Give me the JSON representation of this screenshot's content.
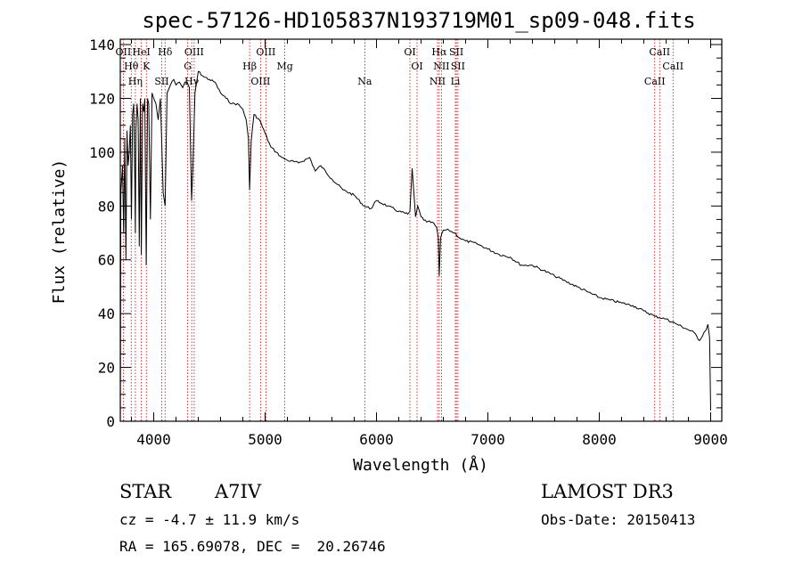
{
  "chart_data": {
    "type": "line",
    "title": "spec-57126-HD105837N193719M01_sp09-048.fits",
    "xlabel": "Wavelength (Å)",
    "ylabel": "Flux (relative)",
    "xlim": [
      3700,
      9100
    ],
    "ylim": [
      0,
      142
    ],
    "xticks": [
      4000,
      5000,
      6000,
      7000,
      8000,
      9000
    ],
    "yticks": [
      0,
      20,
      40,
      60,
      80,
      100,
      120,
      140
    ],
    "grid": false,
    "series": [
      {
        "name": "flux",
        "x": [
          3700,
          3705,
          3720,
          3730,
          3740,
          3750,
          3760,
          3770,
          3780,
          3790,
          3800,
          3810,
          3820,
          3830,
          3835,
          3840,
          3850,
          3860,
          3870,
          3880,
          3889,
          3900,
          3910,
          3920,
          3933,
          3945,
          3955,
          3970,
          3985,
          4000,
          4020,
          4040,
          4060,
          4085,
          4102,
          4120,
          4150,
          4180,
          4200,
          4230,
          4260,
          4280,
          4300,
          4320,
          4340,
          4352,
          4370,
          4400,
          4450,
          4500,
          4550,
          4600,
          4650,
          4700,
          4750,
          4800,
          4830,
          4850,
          4861,
          4875,
          4900,
          4950,
          5000,
          5050,
          5100,
          5150,
          5200,
          5300,
          5400,
          5450,
          5500,
          5600,
          5700,
          5800,
          5890,
          5950,
          6000,
          6100,
          6200,
          6280,
          6300,
          6320,
          6350,
          6370,
          6400,
          6450,
          6500,
          6540,
          6555,
          6563,
          6575,
          6600,
          6650,
          6700,
          6750,
          6800,
          6900,
          7000,
          7100,
          7200,
          7300,
          7400,
          7500,
          7600,
          7700,
          7800,
          7900,
          8000,
          8100,
          8200,
          8300,
          8400,
          8500,
          8600,
          8700,
          8800,
          8850,
          8900,
          8940,
          8960,
          8975,
          8990,
          9000
        ],
        "y": [
          0,
          85,
          95,
          70,
          105,
          60,
          108,
          95,
          100,
          110,
          75,
          114,
          118,
          90,
          70,
          108,
          118,
          112,
          65,
          120,
          62,
          118,
          115,
          120,
          58,
          120,
          118,
          75,
          122,
          120,
          118,
          112,
          120,
          85,
          80,
          122,
          125,
          127,
          125,
          126,
          124,
          126,
          126,
          124,
          82,
          95,
          122,
          130,
          128,
          127,
          126,
          122,
          120,
          118,
          118,
          116,
          112,
          105,
          86,
          104,
          114,
          112,
          107,
          102,
          100,
          98,
          97,
          96,
          98,
          93,
          95,
          90,
          86,
          84,
          80,
          79,
          82,
          80,
          78,
          77,
          78,
          94,
          76,
          80,
          76,
          74,
          74,
          72,
          68,
          54,
          68,
          71,
          71,
          70,
          68,
          67,
          66,
          64,
          62,
          61,
          58,
          58,
          56,
          54,
          52,
          50,
          48,
          46,
          45,
          44,
          43,
          41,
          39,
          38,
          36,
          34,
          33,
          30,
          33,
          34,
          36,
          31,
          4
        ]
      }
    ],
    "lines": [
      {
        "label": "OII",
        "x": 3727
      },
      {
        "label": "Hθ",
        "x": 3798
      },
      {
        "label": "Hη",
        "x": 3835
      },
      {
        "label": "HeI",
        "x": 3889
      },
      {
        "label": "K",
        "x": 3934
      },
      {
        "label": "SII",
        "x": 4072
      },
      {
        "label": "Hδ",
        "x": 4102
      },
      {
        "label": "G",
        "x": 4305
      },
      {
        "label": "Hγ",
        "x": 4341
      },
      {
        "label": "OIII",
        "x": 4363
      },
      {
        "label": "Hβ",
        "x": 4861
      },
      {
        "label": "OIII",
        "x": 4959
      },
      {
        "label": "OIII",
        "x": 5007
      },
      {
        "label": "Mg",
        "x": 5177
      },
      {
        "label": "Na",
        "x": 5895
      },
      {
        "label": "OI",
        "x": 6300
      },
      {
        "label": "OI",
        "x": 6364
      },
      {
        "label": "NII",
        "x": 6548
      },
      {
        "label": "Hα",
        "x": 6563
      },
      {
        "label": "NII",
        "x": 6583
      },
      {
        "label": "Li",
        "x": 6708
      },
      {
        "label": "SII",
        "x": 6717
      },
      {
        "label": "SII",
        "x": 6731
      },
      {
        "label": "CaII",
        "x": 8498
      },
      {
        "label": "CaII",
        "x": 8542
      },
      {
        "label": "CaII",
        "x": 8662
      }
    ],
    "colors": {
      "spectrum": "#000000",
      "lines": "#cc0000",
      "axes": "#000000"
    }
  },
  "info": {
    "object_class": "STAR",
    "subclass": "A7IV",
    "survey": "LAMOST DR3",
    "redshift": "cz = -4.7 ± 11.9 km/s",
    "obs_date": "Obs-Date: 20150413",
    "coords": "RA = 165.69078, DEC =  20.26746"
  }
}
